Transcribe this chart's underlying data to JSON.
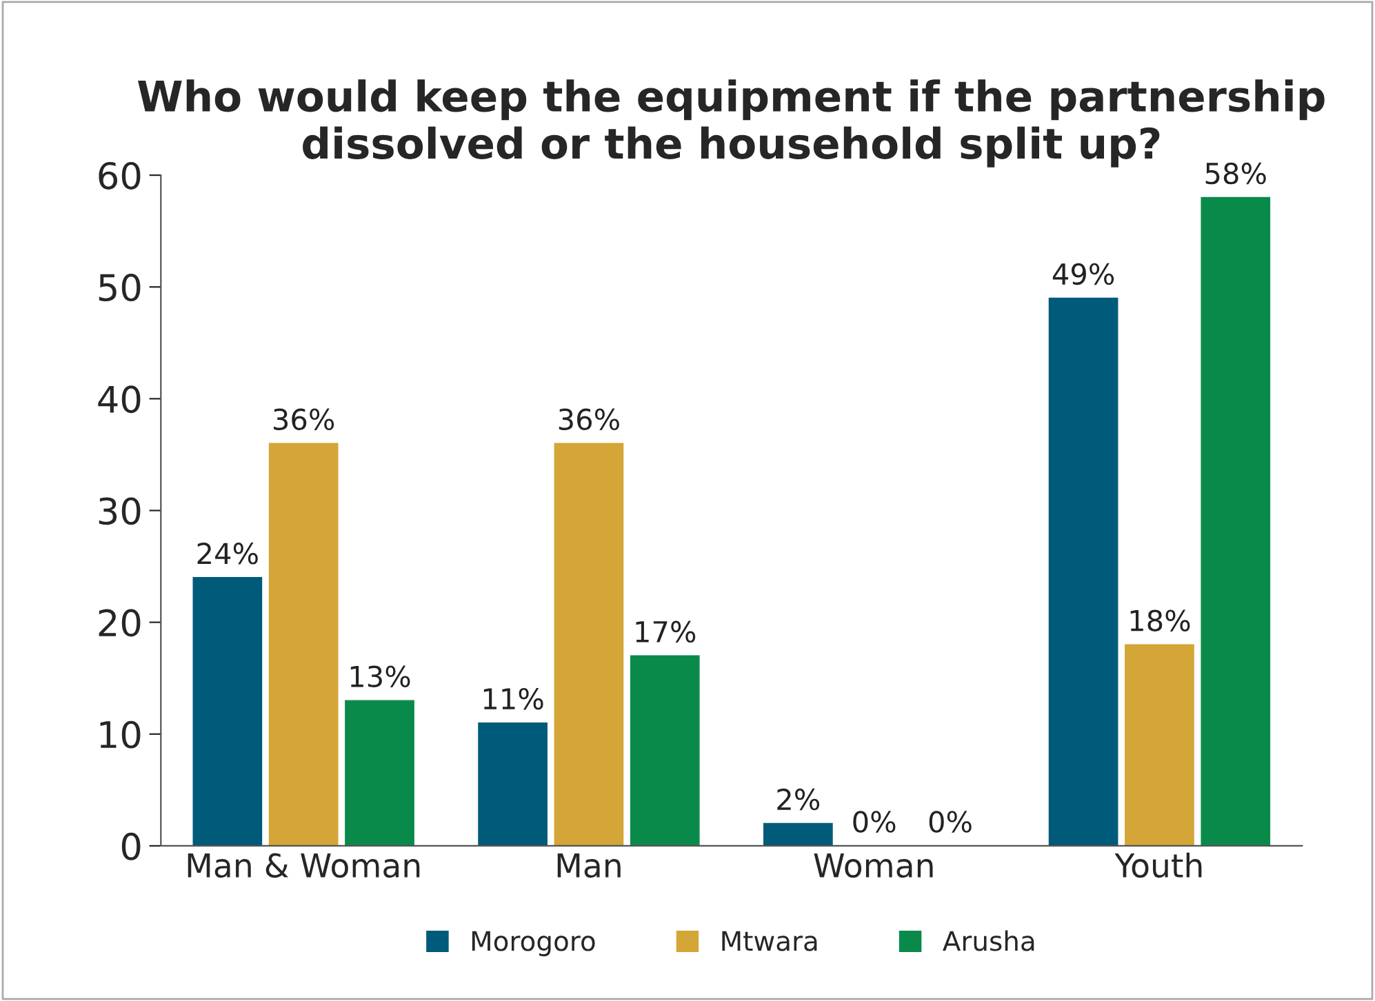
{
  "chart_data": {
    "type": "bar",
    "title": "Who would keep the equipment if the partnership dissolved or the household split up?",
    "categories": [
      "Man & Woman",
      "Man",
      "Woman",
      "Youth"
    ],
    "series": [
      {
        "name": "Morogoro",
        "color": "#005a7a",
        "values": [
          24,
          11,
          2,
          49
        ],
        "value_labels": [
          "24%",
          "11%",
          "2%",
          "49%"
        ]
      },
      {
        "name": "Mtwara",
        "color": "#d4a537",
        "values": [
          36,
          36,
          0,
          18
        ],
        "value_labels": [
          "36%",
          "36%",
          "0%",
          "18%"
        ]
      },
      {
        "name": "Arusha",
        "color": "#0a8a4a",
        "values": [
          13,
          17,
          0,
          58
        ],
        "value_labels": [
          "13%",
          "17%",
          "0%",
          "58%"
        ]
      }
    ],
    "ylim": [
      0,
      60
    ],
    "yticks": [
      0,
      10,
      20,
      30,
      40,
      50,
      60
    ],
    "grid": false,
    "legend": "bottom"
  }
}
